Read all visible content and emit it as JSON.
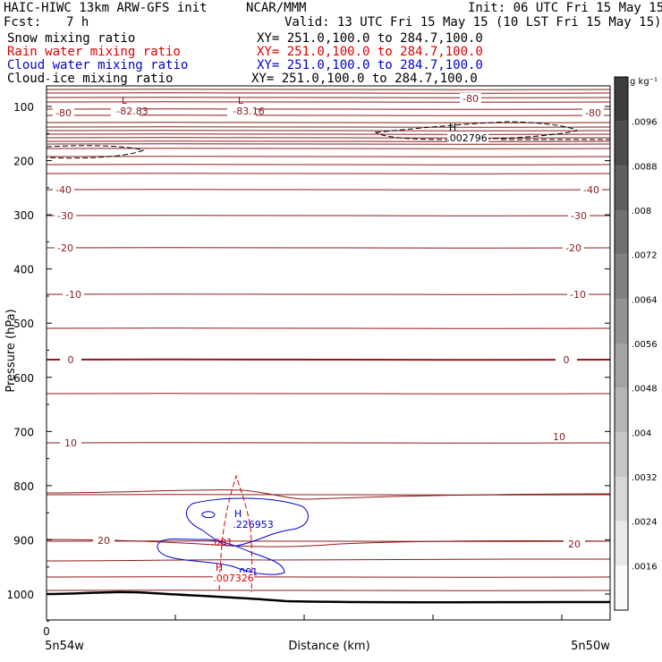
{
  "header": {
    "model": "HAIC-HIWC 13km ARW-GFS init",
    "org": "NCAR/MMM",
    "init": "Init: 06 UTC Fri 15 May 15",
    "fcst_label": "Fcst:",
    "fcst_value": "7 h",
    "valid": "Valid: 13 UTC Fri 15 May 15 (10 LST Fri 15 May 15)"
  },
  "fields": [
    {
      "name": "Snow mixing ratio",
      "xy": "XY= 251.0,100.0 to 284.7,100.0",
      "color": "#000000"
    },
    {
      "name": "Rain water mixing ratio",
      "xy": "XY= 251.0,100.0 to 284.7,100.0",
      "color": "#e00000"
    },
    {
      "name": "Cloud water mixing ratio",
      "xy": "XY= 251.0,100.0 to 284.7,100.0",
      "color": "#0000d0"
    },
    {
      "name": "Cloud ice mixing ratio",
      "xy": "XY= 251.0,100.0 to 284.7,100.0",
      "color": "#000000"
    }
  ],
  "chart_data": {
    "type": "cross-section",
    "ylabel": "Pressure (hPa)",
    "xlabel": "Distance (km)",
    "y_ticks": [
      100,
      200,
      300,
      400,
      500,
      600,
      700,
      800,
      900,
      1000
    ],
    "x_tick_label": "0",
    "x_end_labels": [
      "5n54w",
      "5n50w"
    ],
    "ylim": [
      1050,
      50
    ],
    "colorbar": {
      "unit": "g kg⁻¹",
      "ticks": [
        ".0096",
        ".0088",
        ".008",
        ".0072",
        ".0064",
        ".0056",
        ".0048",
        ".004",
        ".0032",
        ".0024",
        ".0016"
      ]
    },
    "temperature_contours": {
      "color": "#8b1a1a",
      "interval_c": 5,
      "labels": [
        {
          "text": "-80",
          "side": "left"
        },
        {
          "text": "-80",
          "side": "right"
        },
        {
          "text": "-80",
          "side": "top"
        },
        {
          "text": "-40",
          "side": "left"
        },
        {
          "text": "-40",
          "side": "right"
        },
        {
          "text": "-30",
          "side": "left"
        },
        {
          "text": "-30",
          "side": "right"
        },
        {
          "text": "-20",
          "side": "left"
        },
        {
          "text": "-20",
          "side": "right"
        },
        {
          "text": "-10",
          "side": "left"
        },
        {
          "text": "-10",
          "side": "right"
        },
        {
          "text": "0",
          "side": "left"
        },
        {
          "text": "0",
          "side": "right"
        },
        {
          "text": "10",
          "side": "left"
        },
        {
          "text": "10",
          "side": "right"
        },
        {
          "text": "20",
          "side": "left"
        },
        {
          "text": "20",
          "side": "right"
        }
      ],
      "extrema": [
        {
          "type": "L",
          "value": "-82.83"
        },
        {
          "type": "L",
          "value": "-83.16"
        }
      ]
    },
    "ice_extrema": [
      {
        "type": "H",
        "value": ".002796"
      }
    ],
    "cloud_water_extrema": [
      {
        "type": "H",
        "value": ".226953"
      }
    ],
    "cloud_water_labels": [
      ".001"
    ],
    "rain_extrema": [
      {
        "type": "H",
        "value": ".007326"
      }
    ],
    "rain_labels": [
      ".001"
    ]
  }
}
